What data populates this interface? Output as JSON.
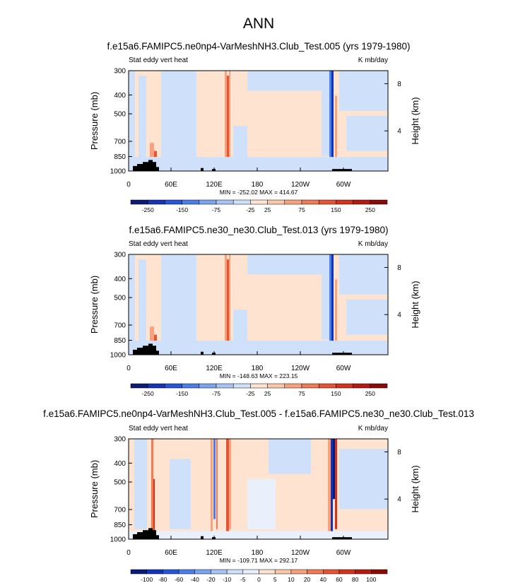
{
  "page_title": "ANN",
  "colors": {
    "background": "#ffffff",
    "plot_base": "#fde3d0",
    "land": "#000000"
  },
  "chart_data": [
    {
      "type": "heatmap",
      "title": "f.e15a6.FAMIPC5.ne0np4-VarMeshNH3.Club_Test.005 (yrs 1979-1980)",
      "left_label": "Stat eddy vert heat",
      "right_label": "K mb/day",
      "ylabel": "Pressure (mb)",
      "ylabel_right": "Height (km)",
      "x_ticks": [
        "0",
        "60E",
        "120E",
        "180",
        "120W",
        "60W"
      ],
      "y_ticks": [
        "300",
        "400",
        "500",
        "700",
        "850",
        "1000"
      ],
      "right_ticks": [
        "8",
        "4"
      ],
      "stats": "MIN = -252.02  MAX = 414.67",
      "colorbar_labels": [
        "-250",
        "-150",
        "-75",
        "-25",
        "25",
        "75",
        "150",
        "250"
      ],
      "colorbar_colors": [
        "#0a1a7a",
        "#1533b5",
        "#2556d8",
        "#4a7ee8",
        "#7aa3f0",
        "#a7c4f5",
        "#cfe0fa",
        "#fde3d0",
        "#fbc7a8",
        "#f7a27c",
        "#f17a55",
        "#e55433",
        "#d3321c",
        "#b51a10",
        "#8a0a08"
      ],
      "min": -252.02,
      "max": 414.67
    },
    {
      "type": "heatmap",
      "title": "f.e15a6.FAMIPC5.ne30_ne30.Club_Test.013 (yrs 1979-1980)",
      "left_label": "Stat eddy vert heat",
      "right_label": "K mb/day",
      "ylabel": "Pressure (mb)",
      "ylabel_right": "Height (km)",
      "x_ticks": [
        "0",
        "60E",
        "120E",
        "180",
        "120W",
        "60W"
      ],
      "y_ticks": [
        "300",
        "400",
        "500",
        "700",
        "850",
        "1000"
      ],
      "right_ticks": [
        "8",
        "4"
      ],
      "stats": "MIN = -148.63  MAX = 223.15",
      "colorbar_labels": [
        "-250",
        "-150",
        "-75",
        "-25",
        "25",
        "75",
        "150",
        "250"
      ],
      "colorbar_colors": [
        "#0a1a7a",
        "#1533b5",
        "#2556d8",
        "#4a7ee8",
        "#7aa3f0",
        "#a7c4f5",
        "#cfe0fa",
        "#fde3d0",
        "#fbc7a8",
        "#f7a27c",
        "#f17a55",
        "#e55433",
        "#d3321c",
        "#b51a10",
        "#8a0a08"
      ],
      "min": -148.63,
      "max": 223.15
    },
    {
      "type": "heatmap",
      "title": "f.e15a6.FAMIPC5.ne0np4-VarMeshNH3.Club_Test.005 - f.e15a6.FAMIPC5.ne30_ne30.Club_Test.013",
      "left_label": "Stat eddy vert heat",
      "right_label": "K mb/day",
      "ylabel": "Pressure (mb)",
      "ylabel_right": "Height (km)",
      "x_ticks": [
        "0",
        "60E",
        "120E",
        "180",
        "120W",
        "60W"
      ],
      "y_ticks": [
        "300",
        "400",
        "500",
        "700",
        "850",
        "1000"
      ],
      "right_ticks": [
        "8",
        "4"
      ],
      "stats": "MIN = -109.71  MAX = 292.17",
      "colorbar_labels": [
        "-100",
        "-80",
        "-60",
        "-40",
        "-20",
        "-10",
        "-5",
        "0",
        "5",
        "10",
        "20",
        "40",
        "60",
        "80",
        "100"
      ],
      "colorbar_colors": [
        "#0a1a7a",
        "#1533b5",
        "#2556d8",
        "#4a7ee8",
        "#7aa3f0",
        "#a7c4f5",
        "#cfe0fa",
        "#e9f0fc",
        "#fde3d0",
        "#fbc7a8",
        "#f7a27c",
        "#f17a55",
        "#e55433",
        "#d3321c",
        "#b51a10",
        "#8a0a08"
      ],
      "min": -109.71,
      "max": 292.17
    }
  ]
}
